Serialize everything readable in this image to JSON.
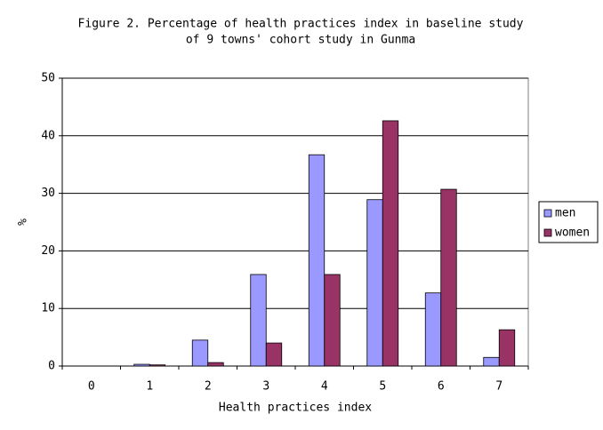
{
  "chart_data": {
    "type": "bar",
    "title": [
      "Figure 2. Percentage of health practices index in baseline study",
      "of 9 towns' cohort study in Gunma"
    ],
    "x_label": "Health practices index",
    "y_label": "%",
    "categories": [
      "0",
      "1",
      "2",
      "3",
      "4",
      "5",
      "6",
      "7"
    ],
    "series": [
      {
        "name": "men",
        "color": "#9999ff",
        "values": [
          0,
          0.3,
          4.5,
          15.9,
          36.7,
          28.9,
          12.7,
          1.5
        ]
      },
      {
        "name": "women",
        "color": "#993366",
        "values": [
          0,
          0.2,
          0.6,
          4.0,
          15.9,
          42.6,
          30.7,
          6.3
        ]
      }
    ],
    "ylim": [
      0,
      50
    ],
    "yticks": [
      0,
      10,
      20,
      30,
      40,
      50
    ],
    "grid": true,
    "legend": "right"
  }
}
